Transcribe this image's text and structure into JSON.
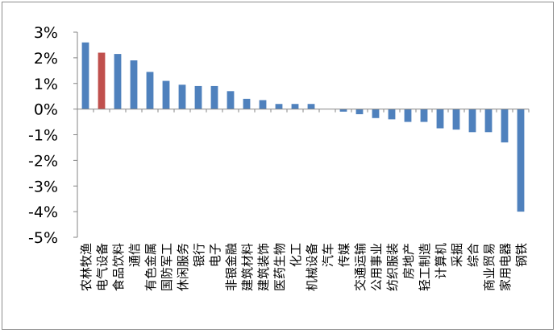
{
  "chart_data": {
    "type": "bar",
    "title": "",
    "xlabel": "",
    "ylabel": "",
    "ylim": [
      -5,
      3
    ],
    "yticks": [
      3,
      2,
      1,
      0,
      -1,
      -2,
      -3,
      -4,
      -5
    ],
    "ytick_labels": [
      "3%",
      "2%",
      "1%",
      "0%",
      "-1%",
      "-2%",
      "-3%",
      "-4%",
      "-5%"
    ],
    "grid": false,
    "legend": "none",
    "categories": [
      "农林牧渔",
      "电气设备",
      "食品饮料",
      "通信",
      "有色金属",
      "国防军工",
      "休闲服务",
      "银行",
      "电子",
      "非银金融",
      "建筑材料",
      "建筑装饰",
      "医药生物",
      "化工",
      "机械设备",
      "汽车",
      "传媒",
      "交通运输",
      "公用事业",
      "纺织服装",
      "房地产",
      "轻工制造",
      "计算机",
      "采掘",
      "综合",
      "商业贸易",
      "家用电器",
      "钢铁"
    ],
    "values": [
      2.6,
      2.2,
      2.15,
      1.9,
      1.45,
      1.1,
      0.95,
      0.9,
      0.9,
      0.7,
      0.4,
      0.35,
      0.2,
      0.2,
      0.2,
      0.0,
      -0.1,
      -0.2,
      -0.35,
      -0.4,
      -0.5,
      -0.5,
      -0.75,
      -0.8,
      -0.9,
      -0.9,
      -1.3,
      -4.0
    ],
    "highlight_index": 1,
    "colors": {
      "bar": "#4f81bd",
      "highlight": "#c0504d",
      "axis": "#868686",
      "frame": "#8c8c8c"
    }
  }
}
